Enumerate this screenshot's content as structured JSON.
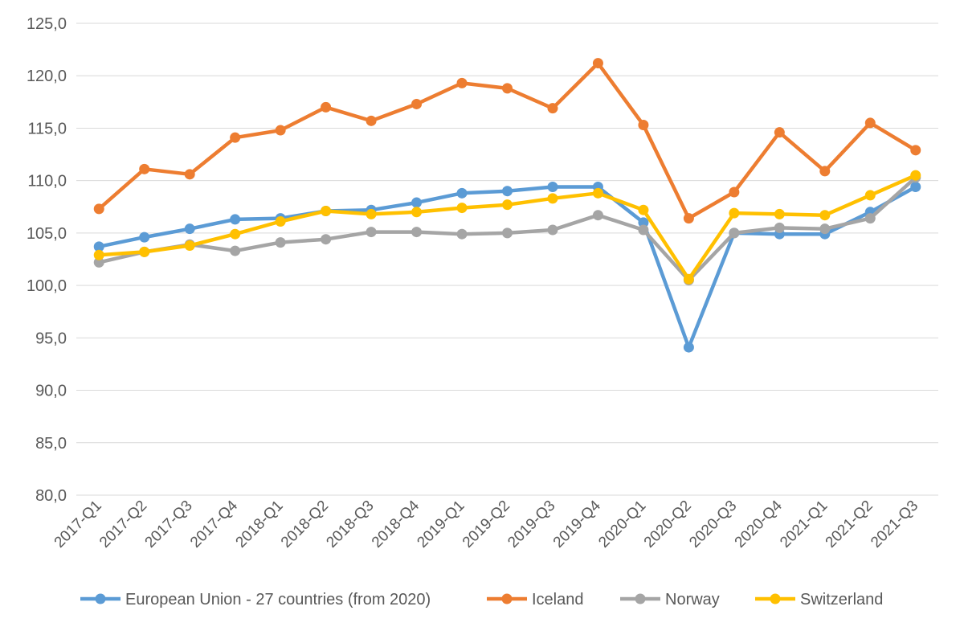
{
  "chart_data": {
    "type": "line",
    "title": "",
    "xlabel": "",
    "ylabel": "",
    "ylim": [
      80,
      125
    ],
    "y_ticks": [
      "80,0",
      "85,0",
      "90,0",
      "95,0",
      "100,0",
      "105,0",
      "110,0",
      "115,0",
      "120,0",
      "125,0"
    ],
    "grid": true,
    "legend_position": "bottom",
    "categories": [
      "2017-Q1",
      "2017-Q2",
      "2017-Q3",
      "2017-Q4",
      "2018-Q1",
      "2018-Q2",
      "2018-Q3",
      "2018-Q4",
      "2019-Q1",
      "2019-Q2",
      "2019-Q3",
      "2019-Q4",
      "2020-Q1",
      "2020-Q2",
      "2020-Q3",
      "2020-Q4",
      "2021-Q1",
      "2021-Q2",
      "2021-Q3"
    ],
    "series": [
      {
        "name": "European Union - 27 countries (from 2020)",
        "color": "#5b9bd5",
        "values": [
          103.7,
          104.6,
          105.4,
          106.3,
          106.4,
          107.1,
          107.2,
          107.9,
          108.8,
          109.0,
          109.4,
          109.4,
          106.0,
          94.1,
          105.0,
          104.9,
          104.9,
          107.0,
          109.4
        ]
      },
      {
        "name": "Iceland",
        "color": "#ed7d31",
        "values": [
          107.3,
          111.1,
          110.6,
          114.1,
          114.8,
          117.0,
          115.7,
          117.3,
          119.3,
          118.8,
          116.9,
          121.2,
          115.3,
          106.4,
          108.9,
          114.6,
          110.9,
          115.5,
          112.9
        ]
      },
      {
        "name": "Norway",
        "color": "#a5a5a5",
        "values": [
          102.2,
          103.2,
          103.9,
          103.3,
          104.1,
          104.4,
          105.1,
          105.1,
          104.9,
          105.0,
          105.3,
          106.7,
          105.3,
          100.5,
          105.0,
          105.5,
          105.4,
          106.4,
          110.3
        ]
      },
      {
        "name": "Switzerland",
        "color": "#ffc000",
        "values": [
          102.9,
          103.2,
          103.8,
          104.9,
          106.1,
          107.1,
          106.8,
          107.0,
          107.4,
          107.7,
          108.3,
          108.8,
          107.2,
          100.6,
          106.9,
          106.8,
          106.7,
          108.6,
          110.5
        ]
      }
    ]
  }
}
